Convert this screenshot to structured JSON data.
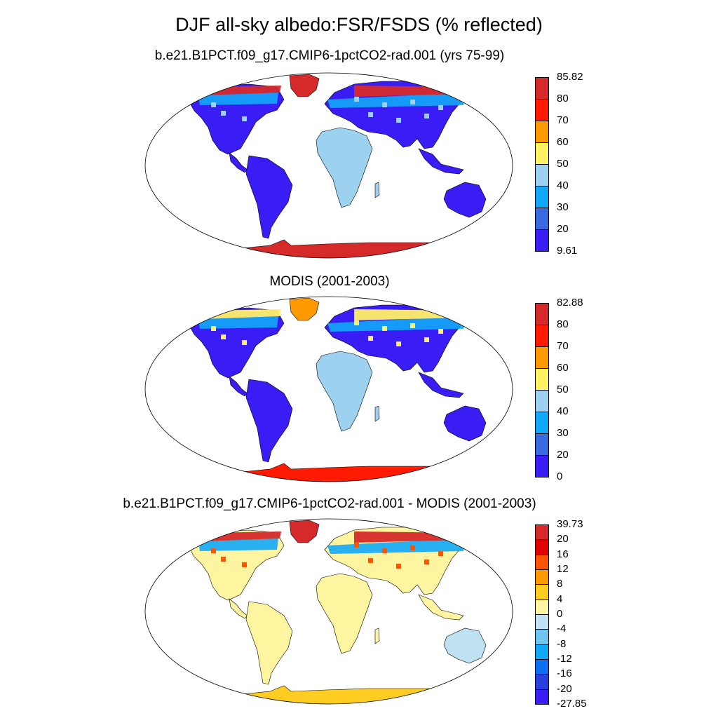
{
  "title": "DJF all-sky albedo:FSR/FSDS (% reflected)",
  "panels": [
    {
      "title": "b.e21.B1PCT.f09_g17.CMIP6-1pctCO2-rad.001 (yrs 75-99)",
      "colorbar": {
        "labels": [
          "85.82",
          "80",
          "70",
          "60",
          "50",
          "40",
          "30",
          "20",
          "9.61"
        ],
        "colors": [
          "#d62a2a",
          "#ff1a00",
          "#ff9900",
          "#fff066",
          "#9cd2f0",
          "#12a8f8",
          "#3a6ae0",
          "#3a1cf5"
        ]
      },
      "fill": {
        "land": "#3a1cf5",
        "africa": "#9cd2f0",
        "australia": "#3a1cf5",
        "antarctica": "#d62a2a",
        "greenland": "#d62a2a",
        "high_lat": "#d62a2a",
        "mid_band": "#12a8f8",
        "stipple": "#9cd2f0"
      }
    },
    {
      "title": "MODIS (2001-2003)",
      "colorbar": {
        "labels": [
          "82.88",
          "80",
          "70",
          "60",
          "50",
          "40",
          "30",
          "20",
          "0"
        ],
        "colors": [
          "#d62a2a",
          "#ff1a00",
          "#ff9900",
          "#fff066",
          "#9cd2f0",
          "#12a8f8",
          "#3a6ae0",
          "#3a1cf5"
        ]
      },
      "fill": {
        "land": "#3a1cf5",
        "africa": "#9cd2f0",
        "australia": "#3a1cf5",
        "antarctica": "#ff1a00",
        "greenland": "#ff9900",
        "high_lat": "#fff066",
        "mid_band": "#12a8f8",
        "stipple": "#fff066"
      }
    },
    {
      "title": "b.e21.B1PCT.f09_g17.CMIP6-1pctCO2-rad.001 - MODIS (2001-2003)",
      "colorbar": {
        "labels": [
          "39.73",
          "20",
          "16",
          "12",
          "8",
          "4",
          "0",
          "-4",
          "-8",
          "-12",
          "-16",
          "-20",
          "-27.85"
        ],
        "colors": [
          "#d62a2a",
          "#e00000",
          "#ff5500",
          "#ff9900",
          "#ffcc22",
          "#fff5a0",
          "#bfe2f2",
          "#6ec6f0",
          "#12a8f8",
          "#0d6ff5",
          "#2a3fe0",
          "#3a1cf5"
        ]
      },
      "fill": {
        "land": "#fff5a0",
        "africa": "#fff5a0",
        "australia": "#bfe2f2",
        "antarctica": "#ffcc22",
        "greenland": "#d62a2a",
        "high_lat": "#d62a2a",
        "mid_band": "#12a8f8",
        "stipple": "#ff5500"
      }
    }
  ]
}
